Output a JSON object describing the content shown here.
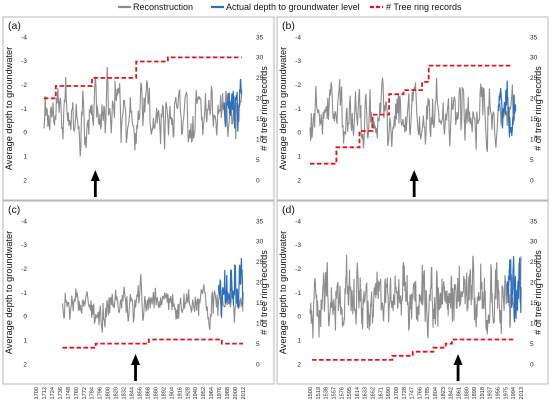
{
  "legend": {
    "reconstruction": "Reconstruction",
    "actual": "Actual depth to groundwater level",
    "tree": "# Tree ring records"
  },
  "colors": {
    "reconstruction": "#8c8c8c",
    "actual": "#2a6fc0",
    "tree": "#e8101a",
    "arrow": "#000000",
    "frame": "#a6a6a6"
  },
  "chart_data": [
    {
      "type": "line",
      "panel": "(a)",
      "ylabel": "Average depth to groundwater",
      "y2label": "# of tree ring records",
      "y_ticks": [
        "-4",
        "-3",
        "-2",
        "-1",
        "0",
        "1",
        "2"
      ],
      "y2_ticks": [
        "0",
        "5",
        "10",
        "15",
        "20",
        "25",
        "30",
        "35"
      ],
      "ylim": [
        2,
        -4
      ],
      "y2lim": [
        0,
        35
      ],
      "xlim": [
        1700,
        2020
      ],
      "recon_start": 1712,
      "recon_end": 2012,
      "actual_start": 1985,
      "actual_end": 2012,
      "tree_steps": [
        [
          1712,
          20
        ],
        [
          1730,
          23
        ],
        [
          1785,
          25
        ],
        [
          1852,
          29
        ],
        [
          1900,
          30
        ],
        [
          1990,
          30
        ],
        [
          2012,
          30
        ]
      ],
      "arrow_year": 1790
    },
    {
      "type": "line",
      "panel": "(b)",
      "ylabel": "Average depth to groundwater",
      "y2label": "# of tree ring records",
      "y_ticks": [
        "-4",
        "-3",
        "-2",
        "-1",
        "0",
        "1",
        "2"
      ],
      "y2_ticks": [
        "0",
        "5",
        "10",
        "15",
        "20",
        "25",
        "30",
        "35"
      ],
      "ylim": [
        2,
        -4
      ],
      "y2lim": [
        0,
        35
      ],
      "xlim": [
        1700,
        2020
      ],
      "recon_start": 1700,
      "recon_end": 2012,
      "actual_start": 1985,
      "actual_end": 2012,
      "tree_steps": [
        [
          1700,
          4
        ],
        [
          1740,
          8
        ],
        [
          1775,
          12
        ],
        [
          1795,
          16
        ],
        [
          1820,
          21
        ],
        [
          1842,
          22
        ],
        [
          1870,
          24
        ],
        [
          1880,
          28
        ],
        [
          2005,
          28
        ]
      ],
      "arrow_year": 1858
    },
    {
      "type": "line",
      "panel": "(c)",
      "ylabel": "Average depth to groundwater",
      "y2label": "# of tree ring records",
      "y_ticks": [
        "-4",
        "-3",
        "-2",
        "-1",
        "0",
        "1",
        "2"
      ],
      "y2_ticks": [
        "0",
        "5",
        "10",
        "15",
        "20",
        "25",
        "30",
        "35"
      ],
      "ylim": [
        2,
        -4
      ],
      "y2lim": [
        0,
        35
      ],
      "xlim": [
        1700,
        2018
      ],
      "x_ticks": [
        "1700",
        "1712",
        "1724",
        "1736",
        "1748",
        "1760",
        "1772",
        "1784",
        "1796",
        "1808",
        "1820",
        "1832",
        "1844",
        "1856",
        "1868",
        "1880",
        "1892",
        "1904",
        "1916",
        "1928",
        "1940",
        "1952",
        "1964",
        "1976",
        "1988",
        "2000",
        "2012"
      ],
      "recon_start": 1740,
      "recon_end": 2012,
      "actual_start": 1975,
      "actual_end": 2012,
      "tree_steps": [
        [
          1740,
          4
        ],
        [
          1790,
          5
        ],
        [
          1830,
          5
        ],
        [
          1870,
          6
        ],
        [
          1905,
          6
        ],
        [
          1980,
          5
        ],
        [
          2012,
          5
        ]
      ],
      "arrow_year": 1850
    },
    {
      "type": "line",
      "panel": "(d)",
      "ylabel": "Average depth to groundwater",
      "y2label": "# of tree ring records",
      "y_ticks": [
        "-4",
        "-3",
        "-2",
        "-1",
        "0",
        "1",
        "2"
      ],
      "y2_ticks": [
        "0",
        "5",
        "10",
        "15",
        "20",
        "25",
        "30",
        "35"
      ],
      "ylim": [
        2,
        -4
      ],
      "y2lim": [
        0,
        35
      ],
      "xlim": [
        1500,
        2013
      ],
      "x_ticks": [
        "1500",
        "1519",
        "1538",
        "1557",
        "1576",
        "1595",
        "1614",
        "1633",
        "1652",
        "1671",
        "1690",
        "1709",
        "1728",
        "1747",
        "1766",
        "1785",
        "1804",
        "1823",
        "1842",
        "1861",
        "1880",
        "1899",
        "1918",
        "1937",
        "1956",
        "1975",
        "1994",
        "2013"
      ],
      "recon_start": 1500,
      "recon_end": 2013,
      "actual_start": 1980,
      "actual_end": 2013,
      "tree_steps": [
        [
          1505,
          1
        ],
        [
          1700,
          2
        ],
        [
          1750,
          3
        ],
        [
          1800,
          4
        ],
        [
          1830,
          5
        ],
        [
          1845,
          6
        ],
        [
          1995,
          6
        ]
      ],
      "arrow_year": 1860
    }
  ]
}
